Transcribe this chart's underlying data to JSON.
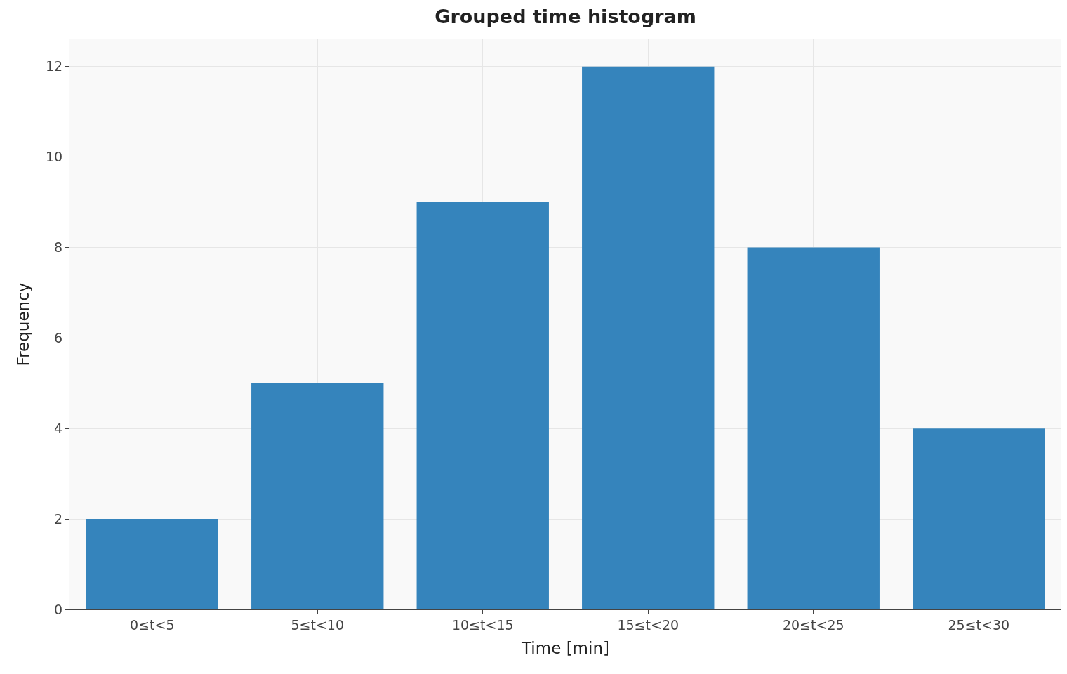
{
  "chart_data": {
    "type": "bar",
    "title": "Grouped time histogram",
    "xlabel": "Time [min]",
    "ylabel": "Frequency",
    "categories": [
      "0≤t<5",
      "5≤t<10",
      "10≤t<15",
      "15≤t<20",
      "20≤t<25",
      "25≤t<30"
    ],
    "values": [
      2,
      5,
      9,
      12,
      8,
      4
    ],
    "color": "#3584bc",
    "ylim": [
      0,
      12.6
    ],
    "yticks": [
      0,
      2,
      4,
      6,
      8,
      10,
      12
    ],
    "grid": true
  }
}
